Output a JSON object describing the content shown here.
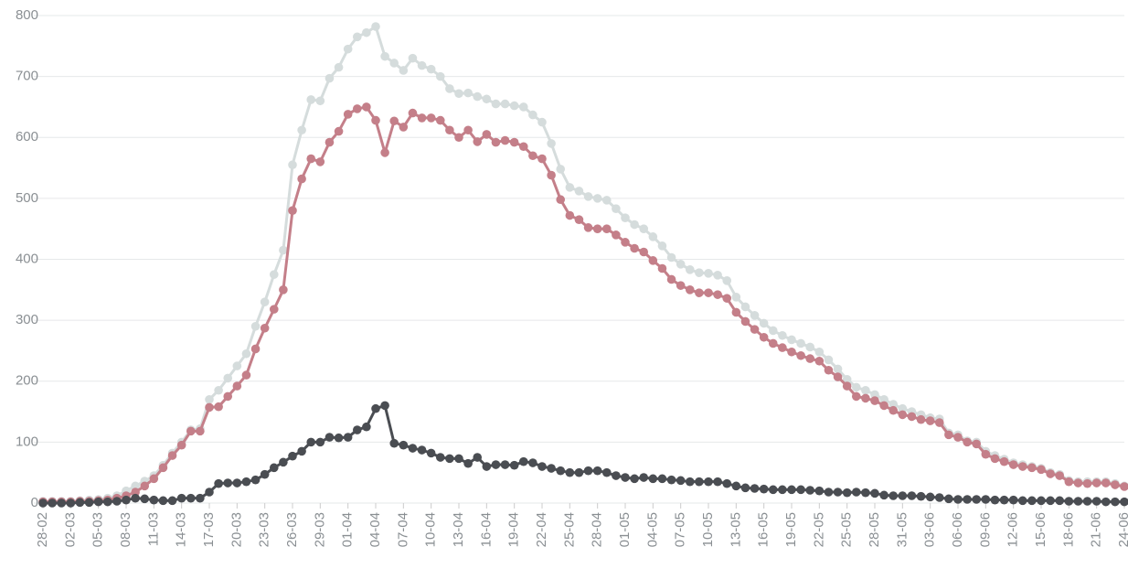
{
  "chart_data": {
    "type": "line",
    "categories": [
      "28-02",
      null,
      null,
      "02-03",
      null,
      null,
      "05-03",
      null,
      null,
      "08-03",
      null,
      null,
      "11-03",
      null,
      null,
      "14-03",
      null,
      null,
      "17-03",
      null,
      null,
      "20-03",
      null,
      null,
      "23-03",
      null,
      null,
      "26-03",
      null,
      null,
      "29-03",
      null,
      null,
      "01-04",
      null,
      null,
      "04-04",
      null,
      null,
      "07-04",
      null,
      null,
      "10-04",
      null,
      null,
      "13-04",
      null,
      null,
      "16-04",
      null,
      null,
      "19-04",
      null,
      null,
      "22-04",
      null,
      null,
      "25-04",
      null,
      null,
      "28-04",
      null,
      null,
      "01-05",
      null,
      null,
      "04-05",
      null,
      null,
      "07-05",
      null,
      null,
      "10-05",
      null,
      null,
      "13-05",
      null,
      null,
      "16-05",
      null,
      null,
      "19-05",
      null,
      null,
      "22-05",
      null,
      null,
      "25-05",
      null,
      null,
      "28-05",
      null,
      null,
      "31-05",
      null,
      null,
      "03-06",
      null,
      null,
      "06-06",
      null,
      null,
      "09-06",
      null,
      null,
      "12-06",
      null,
      null,
      "15-06",
      null,
      null,
      "18-06",
      null,
      null,
      "21-06",
      null,
      null,
      "24-06"
    ],
    "series": [
      {
        "color": "#d5dcdc",
        "values": [
          3,
          3,
          3,
          3,
          4,
          5,
          6,
          8,
          12,
          20,
          28,
          36,
          45,
          62,
          82,
          100,
          120,
          122,
          170,
          185,
          205,
          225,
          245,
          290,
          330,
          375,
          415,
          555,
          612,
          662,
          660,
          697,
          715,
          745,
          765,
          772,
          782,
          733,
          722,
          710,
          730,
          718,
          712,
          700,
          680,
          672,
          673,
          667,
          663,
          655,
          655,
          652,
          650,
          637,
          625,
          590,
          548,
          518,
          512,
          503,
          500,
          497,
          483,
          468,
          457,
          450,
          437,
          422,
          403,
          392,
          383,
          378,
          377,
          374,
          365,
          338,
          322,
          308,
          295,
          283,
          275,
          268,
          262,
          256,
          248,
          235,
          220,
          203,
          190,
          185,
          178,
          170,
          162,
          155,
          150,
          145,
          140,
          138,
          115,
          112,
          102,
          100,
          85,
          78,
          72,
          66,
          63,
          60,
          57,
          50,
          47,
          37,
          35,
          35,
          35,
          35,
          32,
          28
        ]
      },
      {
        "color": "#c47f89",
        "values": [
          2,
          2,
          2,
          2,
          3,
          3,
          4,
          5,
          8,
          12,
          18,
          28,
          40,
          58,
          78,
          95,
          118,
          118,
          157,
          158,
          175,
          192,
          210,
          253,
          287,
          318,
          350,
          480,
          532,
          565,
          560,
          592,
          610,
          638,
          647,
          650,
          628,
          575,
          627,
          617,
          640,
          632,
          632,
          628,
          612,
          600,
          612,
          593,
          605,
          592,
          595,
          592,
          585,
          570,
          565,
          538,
          498,
          472,
          465,
          452,
          450,
          450,
          440,
          428,
          418,
          412,
          398,
          385,
          367,
          357,
          350,
          345,
          345,
          342,
          336,
          313,
          298,
          285,
          272,
          262,
          255,
          248,
          242,
          237,
          233,
          218,
          207,
          192,
          175,
          172,
          168,
          160,
          152,
          145,
          142,
          137,
          135,
          132,
          112,
          108,
          100,
          97,
          80,
          73,
          68,
          63,
          60,
          58,
          55,
          48,
          45,
          35,
          33,
          32,
          33,
          33,
          30,
          27
        ]
      },
      {
        "color": "#4a4d52",
        "values": [
          0,
          0,
          0,
          0,
          1,
          1,
          2,
          2,
          3,
          5,
          8,
          7,
          5,
          4,
          4,
          8,
          8,
          8,
          18,
          32,
          33,
          33,
          35,
          38,
          47,
          58,
          67,
          77,
          85,
          100,
          100,
          108,
          107,
          108,
          120,
          125,
          155,
          160,
          98,
          95,
          90,
          87,
          82,
          75,
          73,
          73,
          65,
          75,
          60,
          63,
          63,
          62,
          68,
          66,
          60,
          57,
          53,
          50,
          50,
          53,
          53,
          50,
          45,
          42,
          40,
          42,
          40,
          40,
          38,
          37,
          35,
          35,
          35,
          35,
          32,
          28,
          25,
          24,
          23,
          22,
          22,
          22,
          22,
          21,
          20,
          18,
          18,
          17,
          18,
          17,
          16,
          13,
          12,
          12,
          12,
          11,
          10,
          9,
          7,
          6,
          6,
          6,
          6,
          5,
          5,
          5,
          4,
          4,
          4,
          4,
          4,
          3,
          3,
          3,
          3,
          2,
          2,
          2
        ]
      }
    ],
    "ylim": [
      0,
      800
    ],
    "yticks": [
      0,
      100,
      200,
      300,
      400,
      500,
      600,
      700,
      800
    ],
    "grid": true
  }
}
